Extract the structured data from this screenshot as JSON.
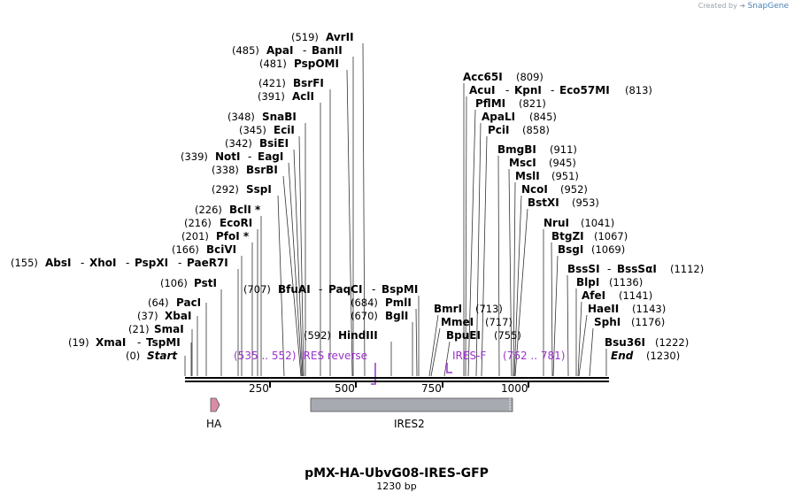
{
  "branding": {
    "created_by": "Created by",
    "brand": "SnapGene"
  },
  "map": {
    "name": "pMX-HA-UbvG08-IRES-GFP",
    "length_label": "1230 bp",
    "ticks": [
      "250",
      "500",
      "750",
      "1000"
    ]
  },
  "sites": {
    "start": {
      "pos": "(0)",
      "name": "Start"
    },
    "end": {
      "pos": "(1230)",
      "name": "End"
    },
    "xmai": {
      "pos": "(19)",
      "names": "XmaI",
      "sep1": "-",
      "name2": "TspMI"
    },
    "smai": {
      "pos": "(21)",
      "name": "SmaI"
    },
    "xbai": {
      "pos": "(37)",
      "name": "XbaI"
    },
    "paci": {
      "pos": "(64)",
      "name": "PacI"
    },
    "psti": {
      "pos": "(106)",
      "name": "PstI"
    },
    "absi": {
      "pos": "(155)",
      "name": "AbsI",
      "n2": "XhoI",
      "n3": "PspXI",
      "n4": "PaeR7I",
      "sep": "-"
    },
    "bcivi": {
      "pos": "(166)",
      "name": "BciVI"
    },
    "pfoi": {
      "pos": "(201)",
      "name": "PfoI *"
    },
    "ecori": {
      "pos": "(216)",
      "name": "EcoRI"
    },
    "bcli": {
      "pos": "(226)",
      "name": "BclI *"
    },
    "sspi": {
      "pos": "(292)",
      "name": "SspI"
    },
    "bsrbi": {
      "pos": "(338)",
      "name": "BsrBI"
    },
    "noti": {
      "pos": "(339)",
      "name": "NotI",
      "sep": "-",
      "name2": "EagI"
    },
    "bsiei": {
      "pos": "(342)",
      "name": "BsiEI"
    },
    "ecii": {
      "pos": "(345)",
      "name": "EciI"
    },
    "snabi": {
      "pos": "(348)",
      "name": "SnaBI"
    },
    "acli": {
      "pos": "(391)",
      "name": "AclI"
    },
    "bsrfi": {
      "pos": "(421)",
      "name": "BsrFI"
    },
    "pspomi": {
      "pos": "(481)",
      "name": "PspOMI"
    },
    "apai": {
      "pos": "(485)",
      "name": "ApaI",
      "sep": "-",
      "name2": "BanII"
    },
    "avrii": {
      "pos": "(519)",
      "name": "AvrII"
    },
    "bfuai": {
      "pos": "(707)",
      "name": "BfuAI",
      "n2": "PaqCI",
      "n3": "BspMI",
      "sep": "-"
    },
    "pmli": {
      "pos": "(684)",
      "name": "PmlI"
    },
    "bgli": {
      "pos": "(670)",
      "name": "BglI"
    },
    "hindiii": {
      "pos": "(592)",
      "name": "HindIII"
    },
    "bmri": {
      "name": "BmrI",
      "pos": "(713)"
    },
    "mmei": {
      "name": "MmeI",
      "pos": "(717)"
    },
    "bpuei": {
      "name": "BpuEI",
      "pos": "(755)"
    },
    "acc65i": {
      "name": "Acc65I",
      "pos": "(809)"
    },
    "acui": {
      "name": "AcuI",
      "n2": "KpnI",
      "n3": "Eco57MI",
      "sep": "-",
      "pos": "(813)"
    },
    "pflmi": {
      "name": "PflMI",
      "pos": "(821)"
    },
    "apali": {
      "name": "ApaLI",
      "pos": "(845)"
    },
    "pcii": {
      "name": "PciI",
      "pos": "(858)"
    },
    "bmgbi": {
      "name": "BmgBI",
      "pos": "(911)"
    },
    "msci": {
      "name": "MscI",
      "pos": "(945)"
    },
    "msli": {
      "name": "MslI",
      "pos": "(951)"
    },
    "ncoi": {
      "name": "NcoI",
      "pos": "(952)"
    },
    "bstxi": {
      "name": "BstXI",
      "pos": "(953)"
    },
    "nrui": {
      "name": "NruI",
      "pos": "(1041)"
    },
    "btgzi": {
      "name": "BtgZI",
      "pos": "(1067)"
    },
    "bsgi": {
      "name": "BsgI",
      "pos": "(1069)"
    },
    "bsssi": {
      "name": "BssSI",
      "sep": "-",
      "name2": "BssSαI",
      "pos": "(1112)"
    },
    "blpi": {
      "name": "BlpI",
      "pos": "(1136)"
    },
    "afei": {
      "name": "AfeI",
      "pos": "(1141)"
    },
    "haeii": {
      "name": "HaeII",
      "pos": "(1143)"
    },
    "sphi": {
      "name": "SphI",
      "pos": "(1176)"
    },
    "bsu36i": {
      "name": "Bsu36I",
      "pos": "(1222)"
    }
  },
  "primers": {
    "ires_reverse": {
      "range": "(535 .. 552)",
      "name": "IRES reverse"
    },
    "ires_f": {
      "name": "IRES-F",
      "range": "(762 .. 781)"
    }
  },
  "features": {
    "ha": "HA",
    "ires2": "IRES2"
  },
  "colors": {
    "primer": "#9933cc",
    "ha_fill": "#d98ca8",
    "ires_fill": "#a7aab0"
  }
}
